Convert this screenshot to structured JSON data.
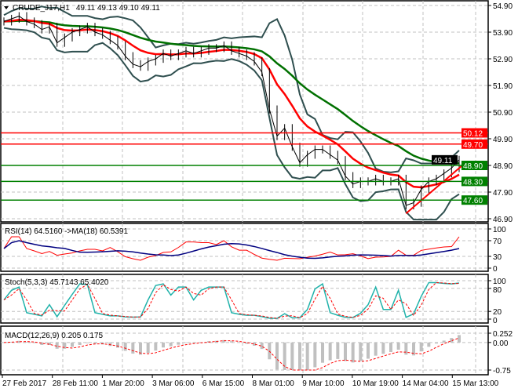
{
  "chart_data": [
    {
      "type": "line",
      "title": "CRUDE_J17,H1",
      "ohlc_label": "49.11 49.13 49.10 49.11",
      "ylim": [
        46.9,
        54.9
      ],
      "y_ticks": [
        "54.90",
        "53.90",
        "52.90",
        "51.90",
        "50.90",
        "49.90",
        "48.90",
        "47.90",
        "46.90"
      ],
      "x_ticks": [
        "27 Feb 2017",
        "28 Feb 11:00",
        "1 Mar 20:00",
        "3 Mar 06:00",
        "6 Mar 15:00",
        "8 Mar 01:00",
        "9 Mar 10:00",
        "10 Mar 19:00",
        "14 Mar 04:00",
        "15 Mar 13:00"
      ],
      "grid": true,
      "close": [
        54.3,
        54.4,
        54.5,
        54.3,
        54.2,
        54.0,
        54.1,
        53.5,
        53.7,
        53.9,
        54.0,
        54.1,
        53.9,
        53.8,
        53.6,
        53.4,
        53.0,
        52.7,
        52.6,
        52.8,
        52.9,
        53.1,
        53.0,
        53.1,
        53.2,
        53.1,
        53.2,
        53.3,
        53.3,
        53.4,
        53.2,
        53.1,
        53.0,
        52.8,
        52.4,
        51.0,
        50.0,
        50.3,
        49.6,
        49.0,
        49.3,
        49.5,
        49.5,
        49.3,
        49.1,
        48.5,
        48.2,
        48.3,
        48.3,
        48.4,
        48.3,
        48.3,
        48.4,
        47.4,
        47.5,
        48.0,
        48.3,
        48.4,
        48.6,
        48.8,
        49.11
      ],
      "levels": [
        {
          "value": "50.12",
          "color": "#ff0000"
        },
        {
          "value": "49.70",
          "color": "#ff0000"
        },
        {
          "value": "48.90",
          "color": "#008000"
        },
        {
          "value": "48.30",
          "color": "#008000"
        },
        {
          "value": "47.60",
          "color": "#008000"
        }
      ],
      "current_price": "49.11",
      "colors": {
        "price": "#000000",
        "fast_ma": "#ff0000",
        "slow_ma": "#007000",
        "bands": "#2f4f4f",
        "trendline": "#ff0000"
      }
    },
    {
      "type": "line",
      "title": "RSI(14) 64.5160  ->MA(18) 60.5391",
      "ylim": [
        0,
        100
      ],
      "y_ticks": [
        "100",
        "70",
        "30",
        "0"
      ],
      "colors": {
        "rsi": "#ff0000",
        "ma": "#000080"
      }
    },
    {
      "type": "line",
      "title": "Stoch(5,3,3) 45.7143 65.4020",
      "ylim": [
        0,
        100
      ],
      "y_ticks": [
        "100",
        "80",
        "20",
        "0"
      ],
      "colors": {
        "main": "#20b2aa",
        "signal": "#ff0000"
      }
    },
    {
      "type": "bar",
      "title": "MACD(12,26,9) 0.205 0.175",
      "ylim": [
        -0.75,
        0.252
      ],
      "y_ticks": [
        "0.252",
        "0.00",
        "-0.75"
      ],
      "colors": {
        "hist": "#c0c0c0",
        "signal": "#ff0000"
      }
    }
  ]
}
